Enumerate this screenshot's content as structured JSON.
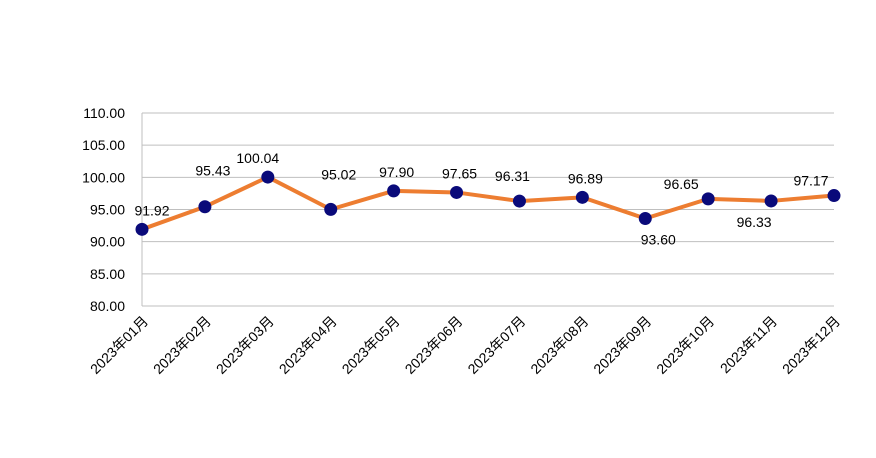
{
  "chart_data": {
    "type": "line",
    "title": "",
    "xlabel": "",
    "ylabel": "",
    "categories": [
      "2023年01月",
      "2023年02月",
      "2023年03月",
      "2023年04月",
      "2023年05月",
      "2023年06月",
      "2023年07月",
      "2023年08月",
      "2023年09月",
      "2023年10月",
      "2023年11月",
      "2023年12月"
    ],
    "series": [
      {
        "values": [
          91.92,
          95.43,
          100.04,
          95.02,
          97.9,
          97.65,
          96.31,
          96.89,
          93.6,
          96.65,
          96.33,
          97.17
        ],
        "data_labels": [
          "91.92",
          "95.43",
          "100.04",
          "95.02",
          "97.90",
          "97.65",
          "96.31",
          "96.89",
          "93.60",
          "96.65",
          "96.33",
          "97.17"
        ],
        "line_color": "#ED7D31",
        "marker_color": "#0A0A7A"
      }
    ],
    "ylim": [
      80,
      110
    ],
    "yticks": [
      "80.00",
      "85.00",
      "90.00",
      "95.00",
      "100.00",
      "105.00",
      "110.00"
    ],
    "grid": true,
    "legend": "none",
    "grid_color": "#BFBFBF"
  }
}
